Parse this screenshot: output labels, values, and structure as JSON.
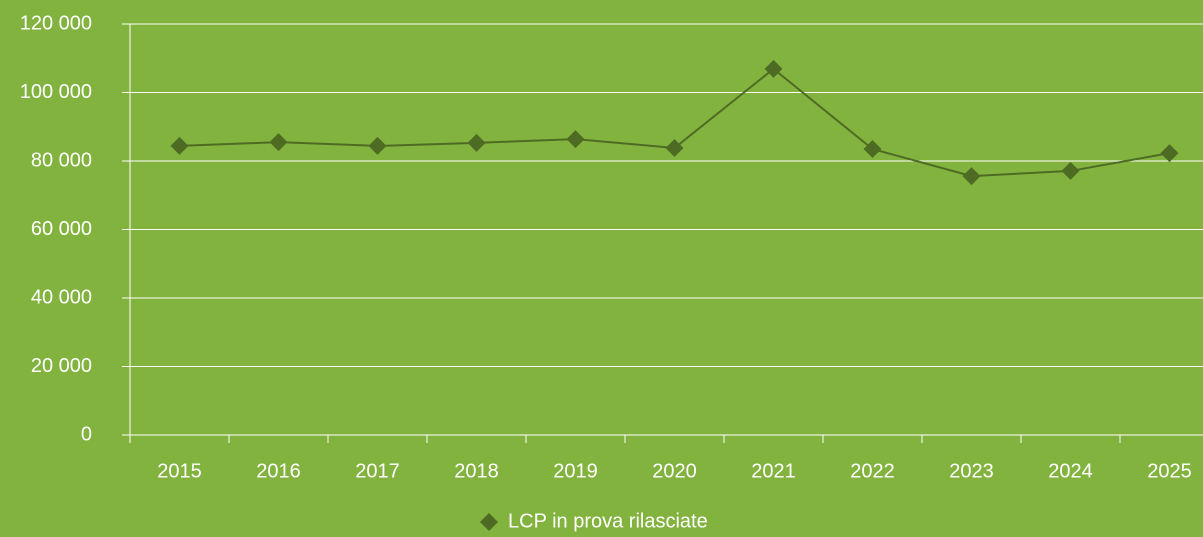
{
  "chart_data": {
    "type": "line",
    "categories": [
      "2015",
      "2016",
      "2017",
      "2018",
      "2019",
      "2020",
      "2021",
      "2022",
      "2023",
      "2024",
      "2025"
    ],
    "series": [
      {
        "name": "LCP in prova rilasciate",
        "color": "#4e6b24",
        "values": [
          84400,
          85500,
          84400,
          85300,
          86400,
          83800,
          106900,
          83500,
          75600,
          77100,
          82300
        ]
      }
    ],
    "ylim": [
      0,
      120000
    ],
    "yticks": [
      0,
      {
        "value": 20000,
        "label": "20 000"
      },
      {
        "value": 40000,
        "label": "40 000"
      },
      {
        "value": 60000,
        "label": "60 000"
      },
      {
        "value": 80000,
        "label": "80 000"
      },
      {
        "value": 100000,
        "label": "100 000"
      },
      {
        "value": 120000,
        "label": "120 000"
      }
    ],
    "grid": true,
    "legend": "bottom"
  }
}
